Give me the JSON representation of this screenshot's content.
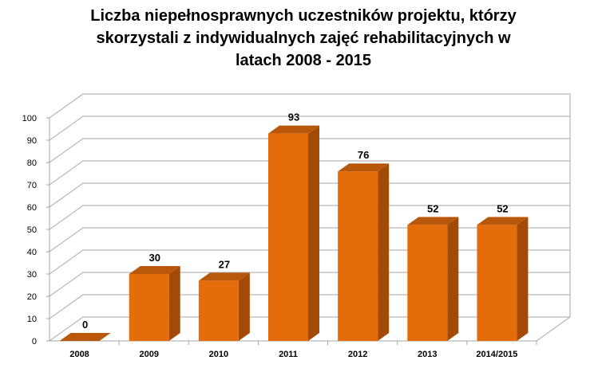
{
  "chart_data": {
    "type": "bar",
    "title_lines": [
      "Liczba niepełnosprawnych uczestników projektu, którzy",
      "skorzystali z indywidualnych zajęć rehabilitacyjnych w",
      "latach 2008 - 2015"
    ],
    "categories": [
      "2008",
      "2009",
      "2010",
      "2011",
      "2012",
      "2013",
      "2014/2015"
    ],
    "values": [
      0,
      30,
      27,
      93,
      76,
      52,
      52
    ],
    "data_labels": [
      "0",
      "30",
      "27",
      "93",
      "76",
      "52",
      "52"
    ],
    "yticks": [
      "0",
      "10",
      "20",
      "30",
      "40",
      "50",
      "60",
      "70",
      "80",
      "90",
      "100"
    ],
    "ylim": [
      0,
      100
    ],
    "grid": true,
    "legend": "none",
    "style": "3d",
    "colors": {
      "bar_front": "#E46C0A",
      "bar_side": "#A34A06",
      "bar_top": "#B9580A",
      "grid": "#A6A6A6"
    }
  }
}
